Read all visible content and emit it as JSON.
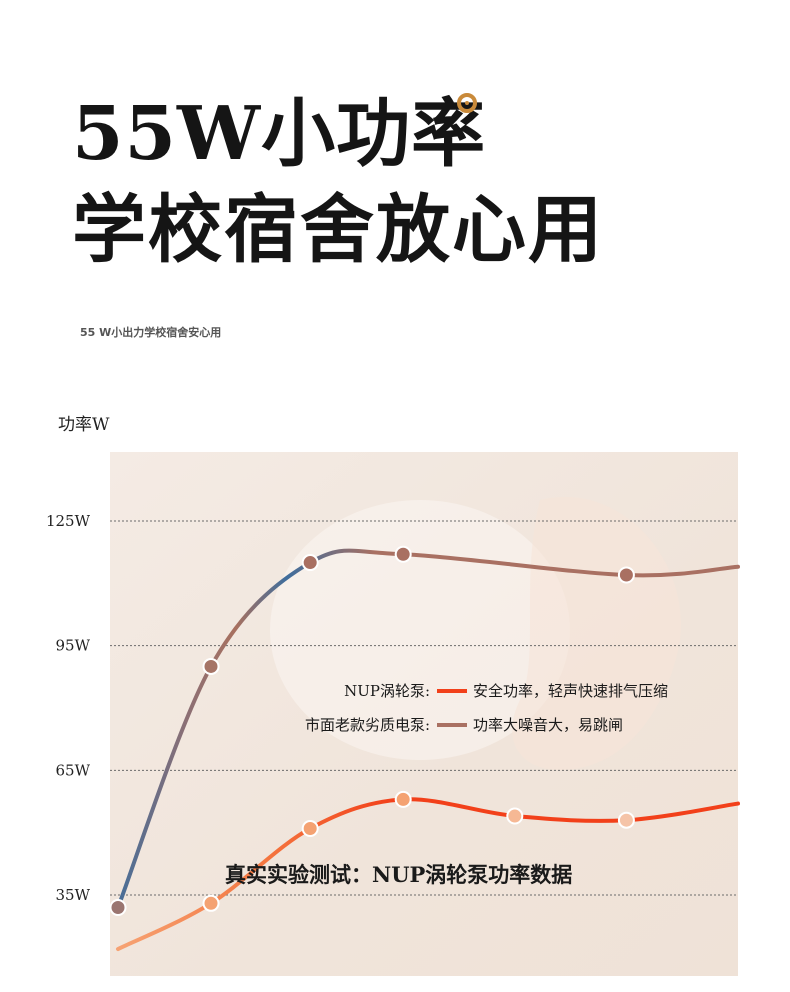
{
  "header": {
    "title_line1": "55W小功率",
    "title_line2": "学校宿舍放心用",
    "subtitle": "55 W小出力学校宿舍安心用"
  },
  "chart_data": {
    "type": "line",
    "ylabel": "功率W",
    "yticks": [
      125,
      95,
      65,
      35
    ],
    "ytick_labels": [
      "125W",
      "95W",
      "65W",
      "35W"
    ],
    "ylim": [
      15,
      145
    ],
    "grid": true,
    "legend_placement": "center",
    "series": [
      {
        "name": "NUP涡轮泵",
        "description": "安全功率，轻声快速排气压缩",
        "color": "#f2401a",
        "color_start": "#f4a272",
        "x": [
          0,
          15,
          31,
          46,
          64,
          82,
          100
        ],
        "values": [
          22,
          33,
          51,
          58,
          54,
          53,
          57
        ],
        "markers": [
          15,
          31,
          46,
          64,
          82
        ]
      },
      {
        "name": "市面老款劣质电泵",
        "description": "功率大噪音大，易跳闸",
        "color": "#a97062",
        "color_alt": "#3f6d9c",
        "x": [
          0,
          15,
          31,
          46,
          82,
          100
        ],
        "values": [
          32,
          90,
          115,
          117,
          112,
          114
        ],
        "markers": [
          0,
          15,
          31,
          46,
          82
        ]
      }
    ],
    "annotation": "真实实验测试：NUP涡轮泵功率数据"
  }
}
